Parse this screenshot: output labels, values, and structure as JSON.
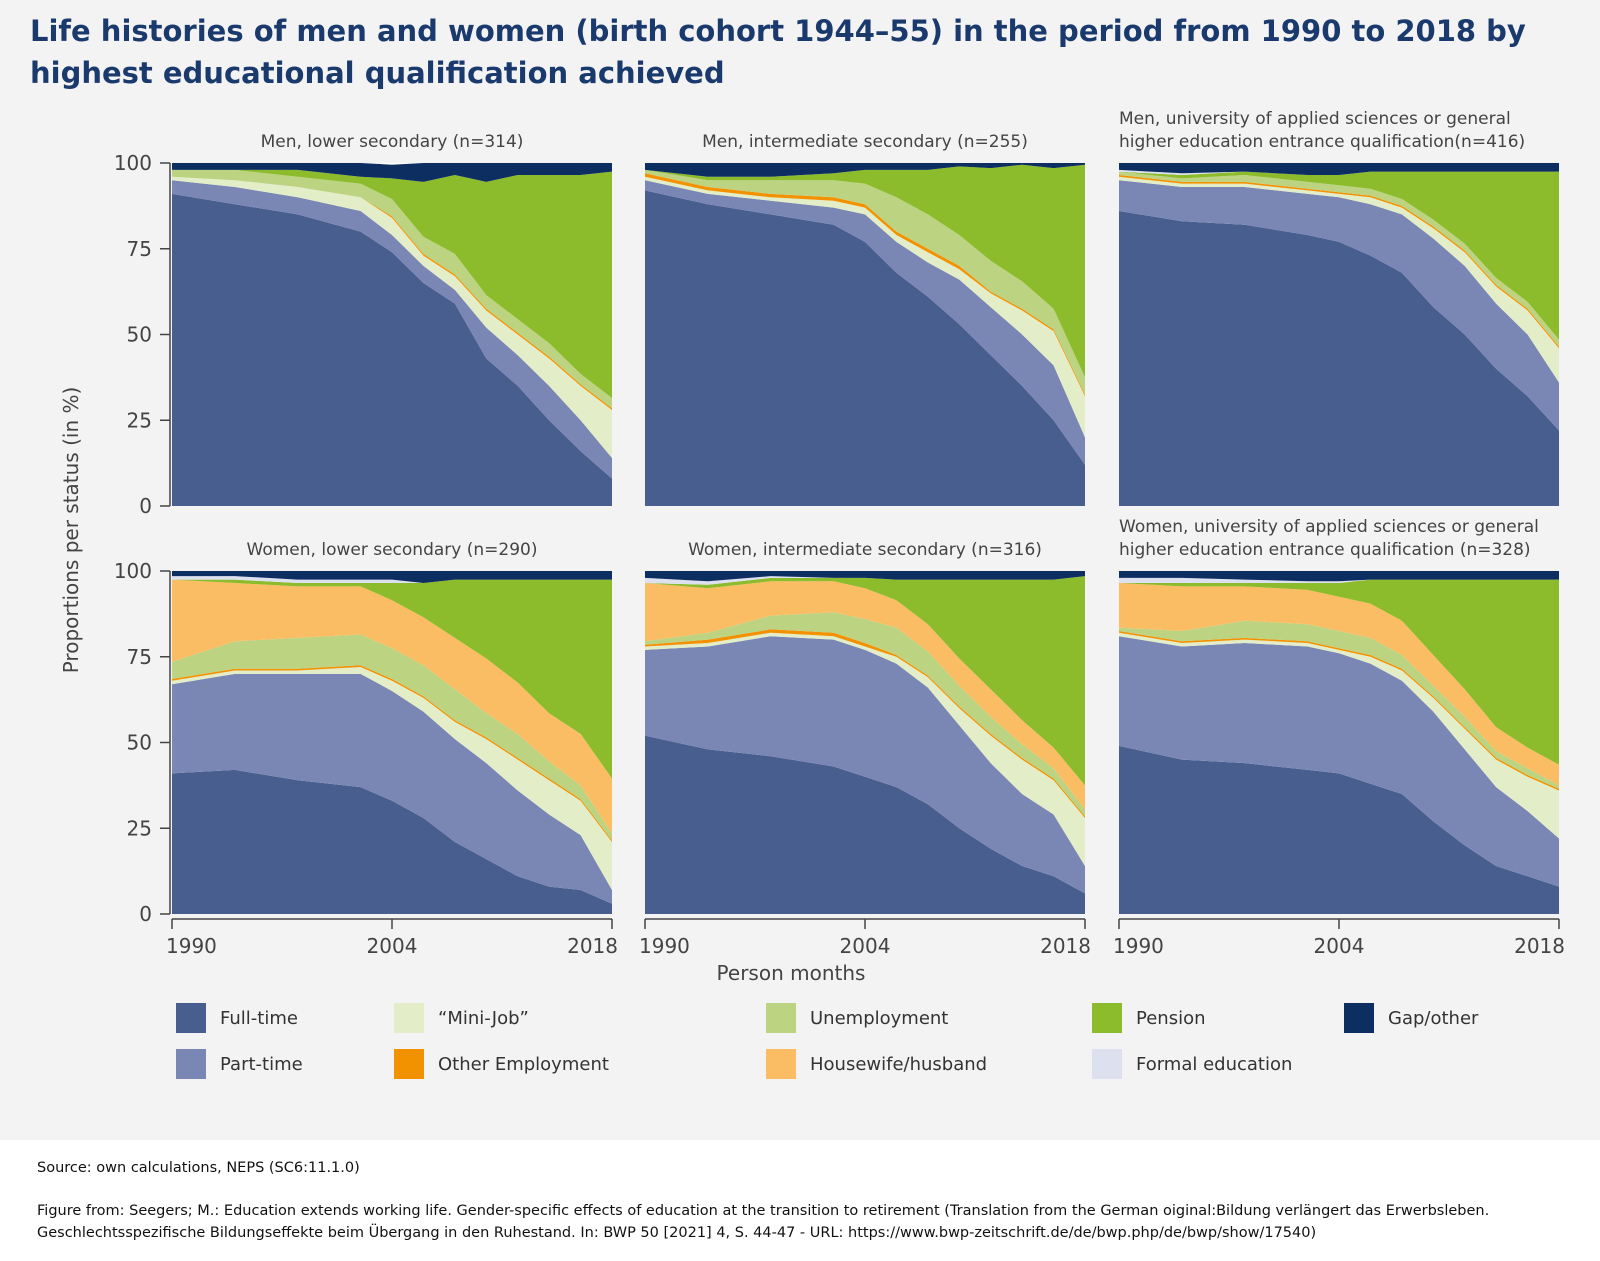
{
  "figure": {
    "title": "Life histories of men and women (birth cohort 1944–55) in the period from 1990 to 2018 by highest educational qualification achieved",
    "ylabel": "Proportions per status (in %)",
    "xlabel": "Person months",
    "source": "Source: own calculations, NEPS (SC6:11.1.0)",
    "reference": "Figure from: Seegers; M.: Education extends working life. Gender-specific effects of education at the transition to retirement (Translation from the German oiginal:Bildung verlängert das Erwerbsleben. Geschlechtsspezifische Bildungseffekte beim Übergang in den Ruhestand. In: BWP 50 [2021] 4, S. 44-47 - URL: https://www.bwp-zeitschrift.de/de/bwp.php/de/bwp/show/17540)"
  },
  "legend": [
    {
      "key": "fulltime",
      "label": "Full-time",
      "color": "#475e8e"
    },
    {
      "key": "parttime",
      "label": "Part-time",
      "color": "#7a87b5"
    },
    {
      "key": "minijob",
      "label": "“Mini-Job”",
      "color": "#e3edc7"
    },
    {
      "key": "otheremp",
      "label": "Other Employment",
      "color": "#f39200"
    },
    {
      "key": "unemployment",
      "label": "Unemployment",
      "color": "#bcd381"
    },
    {
      "key": "housewife",
      "label": "Housewife/husband",
      "color": "#fbbd63"
    },
    {
      "key": "pension",
      "label": "Pension",
      "color": "#8cbb2b"
    },
    {
      "key": "education",
      "label": "Formal education",
      "color": "#dde0ee"
    },
    {
      "key": "gap",
      "label": "Gap/other",
      "color": "#0d2e61"
    }
  ],
  "chart_data": [
    {
      "type": "area",
      "title": "Men, lower secondary (n=314)",
      "x": [
        1990,
        1994,
        1998,
        2002,
        2004,
        2006,
        2008,
        2010,
        2012,
        2014,
        2016,
        2018
      ],
      "ylim": [
        0,
        100
      ],
      "xticks": [
        "1990",
        "2004",
        "2018"
      ],
      "yticks": [
        "0",
        "25",
        "50",
        "75",
        "100"
      ],
      "series": [
        {
          "name": "Full-time",
          "values": [
            91,
            88,
            85,
            80,
            74,
            65,
            59,
            43,
            35,
            25,
            16,
            8
          ]
        },
        {
          "name": "Part-time",
          "values": [
            4,
            5,
            5,
            6,
            5,
            5,
            4,
            9,
            9,
            10,
            9,
            6
          ]
        },
        {
          "name": "“Mini-Job”",
          "values": [
            1,
            2,
            3,
            4,
            5,
            3,
            4,
            5,
            6,
            8,
            10,
            14
          ]
        },
        {
          "name": "Other Employment",
          "values": [
            0,
            0,
            0,
            0,
            0.5,
            0.5,
            0.5,
            0.5,
            0.5,
            0.5,
            0.5,
            0.5
          ]
        },
        {
          "name": "Unemployment",
          "values": [
            2,
            3,
            3,
            4,
            5,
            5,
            6,
            4,
            4,
            4,
            3,
            3
          ]
        },
        {
          "name": "Housewife/husband",
          "values": [
            0,
            0,
            0,
            0,
            0,
            0,
            0,
            0,
            0,
            0,
            0,
            0
          ]
        },
        {
          "name": "Pension",
          "values": [
            0,
            0,
            2,
            2,
            6,
            16,
            23,
            33,
            42,
            49,
            58,
            66
          ]
        },
        {
          "name": "Formal education",
          "values": [
            0,
            0,
            0,
            0,
            0,
            0,
            0,
            0,
            0,
            0,
            0,
            0
          ]
        },
        {
          "name": "Gap/other",
          "values": [
            2,
            2,
            2,
            4,
            4,
            5.5,
            3.5,
            5.5,
            3.5,
            3.5,
            3.5,
            2.5
          ]
        }
      ]
    },
    {
      "type": "area",
      "title": "Men, intermediate secondary (n=255)",
      "x": [
        1990,
        1994,
        1998,
        2002,
        2004,
        2006,
        2008,
        2010,
        2012,
        2014,
        2016,
        2018
      ],
      "ylim": [
        0,
        100
      ],
      "xticks": [
        "1990",
        "2004",
        "2018"
      ],
      "yticks": [
        "0",
        "25",
        "50",
        "75",
        "100"
      ],
      "series": [
        {
          "name": "Full-time",
          "values": [
            92,
            88,
            85,
            82,
            77,
            68,
            61,
            53,
            44,
            35,
            25,
            12
          ]
        },
        {
          "name": "Part-time",
          "values": [
            3,
            3,
            4,
            5,
            8,
            9,
            10,
            13,
            14,
            15,
            16,
            8
          ]
        },
        {
          "name": "“Mini-Job”",
          "values": [
            1,
            1,
            1,
            2,
            2,
            2,
            3,
            3,
            4,
            7,
            10,
            12
          ]
        },
        {
          "name": "Other Employment",
          "values": [
            1,
            1,
            1,
            1,
            1,
            1,
            1,
            1,
            0.5,
            0.5,
            0.5,
            0.5
          ]
        },
        {
          "name": "Unemployment",
          "values": [
            1,
            2,
            4,
            5,
            6,
            10,
            10,
            9,
            9,
            8,
            6,
            5
          ]
        },
        {
          "name": "Housewife/husband",
          "values": [
            0,
            0,
            0,
            0,
            0,
            0,
            0,
            0,
            0,
            0,
            0,
            0
          ]
        },
        {
          "name": "Pension",
          "values": [
            0,
            1,
            1,
            2,
            4,
            8,
            13,
            20,
            27,
            34,
            41,
            62
          ]
        },
        {
          "name": "Formal education",
          "values": [
            0,
            0,
            0,
            0,
            0,
            0,
            0,
            0,
            0,
            0,
            0,
            0
          ]
        },
        {
          "name": "Gap/other",
          "values": [
            2,
            4,
            4,
            3,
            2,
            2,
            2,
            1,
            1.5,
            0.5,
            1.5,
            0.5
          ]
        }
      ]
    },
    {
      "type": "area",
      "title": "Men, university of applied sciences or general higher education entrance qualification(n=416)",
      "x": [
        1990,
        1994,
        1998,
        2002,
        2004,
        2006,
        2008,
        2010,
        2012,
        2014,
        2016,
        2018
      ],
      "ylim": [
        0,
        100
      ],
      "xticks": [
        "1990",
        "2004",
        "2018"
      ],
      "yticks": [
        "0",
        "25",
        "50",
        "75",
        "100"
      ],
      "series": [
        {
          "name": "Full-time",
          "values": [
            86,
            83,
            82,
            79,
            77,
            73,
            68,
            58,
            50,
            40,
            32,
            22
          ]
        },
        {
          "name": "Part-time",
          "values": [
            9,
            10,
            11,
            12,
            13,
            15,
            17,
            20,
            20,
            19,
            18,
            14
          ]
        },
        {
          "name": "“Mini-Job”",
          "values": [
            1,
            1,
            1,
            1,
            1,
            2,
            2,
            3,
            4,
            5,
            7,
            10
          ]
        },
        {
          "name": "Other Employment",
          "values": [
            0.5,
            0.5,
            0.5,
            0.5,
            0.5,
            0.5,
            0.5,
            0.5,
            0.5,
            0.5,
            0.5,
            0.5
          ]
        },
        {
          "name": "Unemployment",
          "values": [
            1,
            1,
            2,
            2,
            2,
            2,
            2,
            2,
            2,
            2,
            2,
            2
          ]
        },
        {
          "name": "Housewife/husband",
          "values": [
            0,
            0,
            0,
            0,
            0,
            0,
            0,
            0,
            0,
            0,
            0,
            0
          ]
        },
        {
          "name": "Pension",
          "values": [
            0,
            1,
            1,
            2,
            3,
            5,
            8,
            14,
            21,
            31,
            38,
            49
          ]
        },
        {
          "name": "Formal education",
          "values": [
            0.5,
            0.5,
            0,
            0,
            0,
            0,
            0,
            0,
            0,
            0,
            0,
            0
          ]
        },
        {
          "name": "Gap/other",
          "values": [
            2,
            3,
            2.5,
            3.5,
            3.5,
            2.5,
            2.5,
            2.5,
            2.5,
            2.5,
            2.5,
            2.5
          ]
        }
      ]
    },
    {
      "type": "area",
      "title": "Women, lower secondary (n=290)",
      "x": [
        1990,
        1994,
        1998,
        2002,
        2004,
        2006,
        2008,
        2010,
        2012,
        2014,
        2016,
        2018
      ],
      "ylim": [
        0,
        100
      ],
      "xticks": [
        "1990",
        "2004",
        "2018"
      ],
      "yticks": [
        "0",
        "25",
        "50",
        "75",
        "100"
      ],
      "series": [
        {
          "name": "Full-time",
          "values": [
            41,
            42,
            39,
            37,
            33,
            28,
            21,
            16,
            11,
            8,
            7,
            3
          ]
        },
        {
          "name": "Part-time",
          "values": [
            26,
            28,
            31,
            33,
            32,
            31,
            30,
            28,
            25,
            21,
            16,
            4
          ]
        },
        {
          "name": "“Mini-Job”",
          "values": [
            1,
            1,
            1,
            2,
            3,
            4,
            5,
            7,
            9,
            10,
            10,
            14
          ]
        },
        {
          "name": "Other Employment",
          "values": [
            0.5,
            0.5,
            0.5,
            0.5,
            0.5,
            0.5,
            0.5,
            0.5,
            0.5,
            0.5,
            0.5,
            0.5
          ]
        },
        {
          "name": "Unemployment",
          "values": [
            5,
            8,
            9,
            9,
            9,
            9,
            9,
            7,
            7,
            5,
            4,
            2
          ]
        },
        {
          "name": "Housewife/husband",
          "values": [
            24,
            17,
            15,
            14,
            14,
            14,
            15,
            16,
            15,
            14,
            15,
            16
          ]
        },
        {
          "name": "Pension",
          "values": [
            0,
            1,
            1,
            1,
            5,
            10,
            17,
            23,
            30,
            39,
            45,
            58
          ]
        },
        {
          "name": "Formal education",
          "values": [
            1,
            1,
            1,
            1,
            1,
            0,
            0,
            0,
            0,
            0,
            0,
            0
          ]
        },
        {
          "name": "Gap/other",
          "values": [
            1.5,
            1.5,
            2.5,
            2.5,
            2.5,
            3.5,
            2.5,
            2.5,
            2.5,
            2.5,
            2.5,
            2.5
          ]
        }
      ]
    },
    {
      "type": "area",
      "title": "Women, intermediate secondary (n=316)",
      "x": [
        1990,
        1994,
        1998,
        2002,
        2004,
        2006,
        2008,
        2010,
        2012,
        2014,
        2016,
        2018
      ],
      "ylim": [
        0,
        100
      ],
      "xticks": [
        "1990",
        "2004",
        "2018"
      ],
      "yticks": [
        "0",
        "25",
        "50",
        "75",
        "100"
      ],
      "series": [
        {
          "name": "Full-time",
          "values": [
            52,
            48,
            46,
            43,
            40,
            37,
            32,
            25,
            19,
            14,
            11,
            6
          ]
        },
        {
          "name": "Part-time",
          "values": [
            25,
            30,
            35,
            37,
            37,
            36,
            34,
            30,
            25,
            21,
            18,
            8
          ]
        },
        {
          "name": "“Mini-Job”",
          "values": [
            1,
            1,
            1,
            1,
            1,
            2,
            3,
            5,
            8,
            10,
            10,
            14
          ]
        },
        {
          "name": "Other Employment",
          "values": [
            0.5,
            1,
            1,
            1,
            1,
            0.5,
            0.5,
            0.5,
            0.5,
            0.5,
            0.5,
            0.5
          ]
        },
        {
          "name": "Unemployment",
          "values": [
            1,
            2,
            4,
            6,
            7,
            8,
            7,
            6,
            5,
            4,
            3,
            2
          ]
        },
        {
          "name": "Housewife/husband",
          "values": [
            17,
            13,
            10,
            9,
            9,
            8,
            8,
            8,
            8,
            7,
            6,
            7
          ]
        },
        {
          "name": "Pension",
          "values": [
            0,
            1,
            1,
            1,
            3,
            6,
            13,
            23,
            32,
            41,
            49,
            61
          ]
        },
        {
          "name": "Formal education",
          "values": [
            1.5,
            1,
            0.5,
            0,
            0,
            0,
            0,
            0,
            0,
            0,
            0,
            0
          ]
        },
        {
          "name": "Gap/other",
          "values": [
            2,
            3,
            1.5,
            2,
            2,
            2.5,
            2.5,
            2.5,
            2.5,
            2.5,
            2.5,
            1.5
          ]
        }
      ]
    },
    {
      "type": "area",
      "title": "Women, university of applied sciences or general higher education entrance qualification (n=328)",
      "x": [
        1990,
        1994,
        1998,
        2002,
        2004,
        2006,
        2008,
        2010,
        2012,
        2014,
        2016,
        2018
      ],
      "ylim": [
        0,
        100
      ],
      "xticks": [
        "1990",
        "2004",
        "2018"
      ],
      "yticks": [
        "0",
        "25",
        "50",
        "75",
        "100"
      ],
      "series": [
        {
          "name": "Full-time",
          "values": [
            49,
            45,
            44,
            42,
            41,
            38,
            35,
            27,
            20,
            14,
            11,
            8
          ]
        },
        {
          "name": "Part-time",
          "values": [
            32,
            33,
            35,
            36,
            35,
            35,
            33,
            32,
            28,
            23,
            19,
            14
          ]
        },
        {
          "name": "“Mini-Job”",
          "values": [
            1,
            1,
            1,
            1,
            1,
            2,
            3,
            4,
            6,
            8,
            10,
            14
          ]
        },
        {
          "name": "Other Employment",
          "values": [
            0.5,
            0.5,
            0.5,
            0.5,
            0.5,
            0.5,
            0.5,
            0.5,
            0.5,
            0.5,
            0.5,
            0.5
          ]
        },
        {
          "name": "Unemployment",
          "values": [
            1,
            3,
            5,
            5,
            5,
            5,
            4,
            3,
            3,
            2,
            2,
            1
          ]
        },
        {
          "name": "Housewife/husband",
          "values": [
            13,
            13,
            10,
            10,
            10,
            10,
            10,
            9,
            8,
            7,
            6,
            6
          ]
        },
        {
          "name": "Pension",
          "values": [
            0,
            1,
            1,
            2,
            4,
            7,
            12,
            22,
            32,
            43,
            49,
            54
          ]
        },
        {
          "name": "Formal education",
          "values": [
            1.5,
            1.5,
            1,
            0.5,
            0.5,
            0,
            0,
            0,
            0,
            0,
            0,
            0
          ]
        },
        {
          "name": "Gap/other",
          "values": [
            2,
            2,
            2.5,
            3,
            3,
            2.5,
            2.5,
            2.5,
            2.5,
            2.5,
            2.5,
            2.5
          ]
        }
      ]
    }
  ]
}
